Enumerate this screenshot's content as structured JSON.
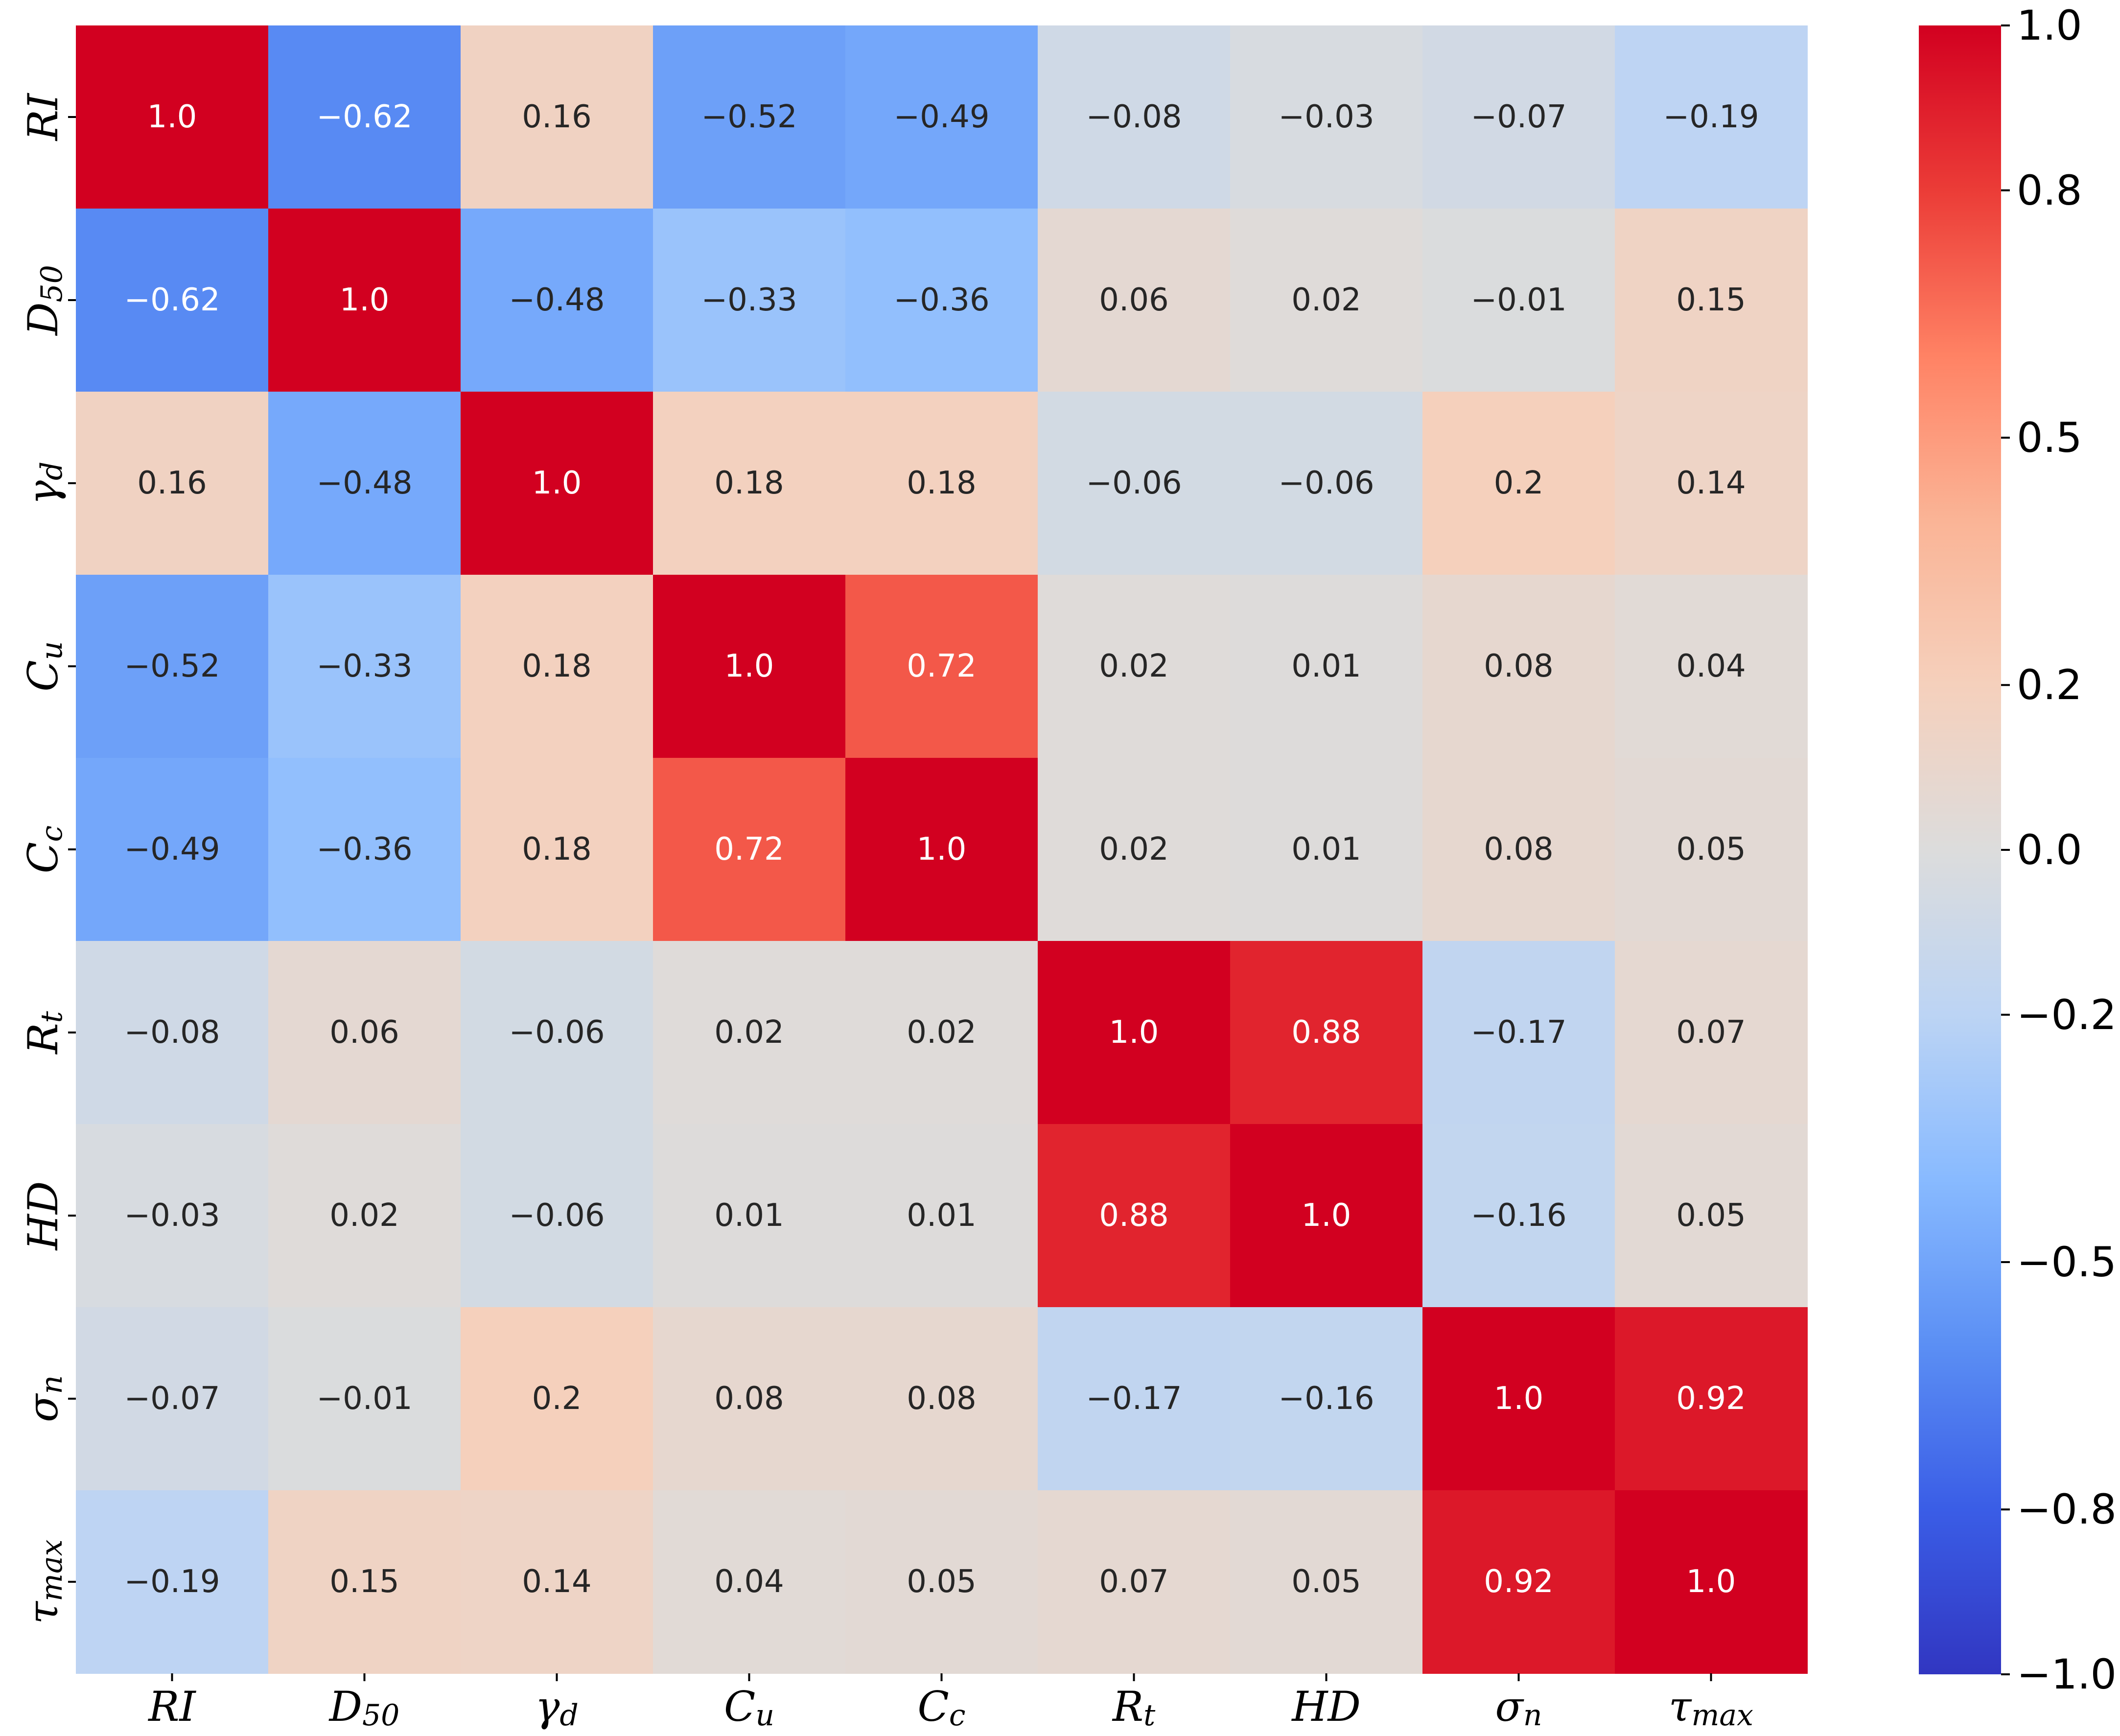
{
  "chart_data": {
    "type": "heatmap",
    "title": "",
    "xlabel": "",
    "ylabel": "",
    "labels": [
      {
        "base": "RI",
        "sub": ""
      },
      {
        "base": "D",
        "sub": "50"
      },
      {
        "base": "γ",
        "sub": "d"
      },
      {
        "base": "C",
        "sub": "u"
      },
      {
        "base": "C",
        "sub": "c"
      },
      {
        "base": "R",
        "sub": "t"
      },
      {
        "base": "HD",
        "sub": ""
      },
      {
        "base": "σ",
        "sub": "n"
      },
      {
        "base": "τ",
        "sub": "max"
      }
    ],
    "values": [
      [
        1.0,
        -0.62,
        0.16,
        -0.52,
        -0.49,
        -0.08,
        -0.03,
        -0.07,
        -0.19
      ],
      [
        -0.62,
        1.0,
        -0.48,
        -0.33,
        -0.36,
        0.06,
        0.02,
        -0.01,
        0.15
      ],
      [
        0.16,
        -0.48,
        1.0,
        0.18,
        0.18,
        -0.06,
        -0.06,
        0.2,
        0.14
      ],
      [
        -0.52,
        -0.33,
        0.18,
        1.0,
        0.72,
        0.02,
        0.01,
        0.08,
        0.04
      ],
      [
        -0.49,
        -0.36,
        0.18,
        0.72,
        1.0,
        0.02,
        0.01,
        0.08,
        0.05
      ],
      [
        -0.08,
        0.06,
        -0.06,
        0.02,
        0.02,
        1.0,
        0.88,
        -0.17,
        0.07
      ],
      [
        -0.03,
        0.02,
        -0.06,
        0.01,
        0.01,
        0.88,
        1.0,
        -0.16,
        0.05
      ],
      [
        -0.07,
        -0.01,
        0.2,
        0.08,
        0.08,
        -0.17,
        -0.16,
        1.0,
        0.92
      ],
      [
        -0.19,
        0.15,
        0.14,
        0.04,
        0.05,
        0.07,
        0.05,
        0.92,
        1.0
      ]
    ],
    "display_values": [
      [
        "1.0",
        "−0.62",
        "0.16",
        "−0.52",
        "−0.49",
        "−0.08",
        "−0.03",
        "−0.07",
        "−0.19"
      ],
      [
        "−0.62",
        "1.0",
        "−0.48",
        "−0.33",
        "−0.36",
        "0.06",
        "0.02",
        "−0.01",
        "0.15"
      ],
      [
        "0.16",
        "−0.48",
        "1.0",
        "0.18",
        "0.18",
        "−0.06",
        "−0.06",
        "0.2",
        "0.14"
      ],
      [
        "−0.52",
        "−0.33",
        "0.18",
        "1.0",
        "0.72",
        "0.02",
        "0.01",
        "0.08",
        "0.04"
      ],
      [
        "−0.49",
        "−0.36",
        "0.18",
        "0.72",
        "1.0",
        "0.02",
        "0.01",
        "0.08",
        "0.05"
      ],
      [
        "−0.08",
        "0.06",
        "−0.06",
        "0.02",
        "0.02",
        "1.0",
        "0.88",
        "−0.17",
        "0.07"
      ],
      [
        "−0.03",
        "0.02",
        "−0.06",
        "0.01",
        "0.01",
        "0.88",
        "1.0",
        "−0.16",
        "0.05"
      ],
      [
        "−0.07",
        "−0.01",
        "0.2",
        "0.08",
        "0.08",
        "−0.17",
        "−0.16",
        "1.0",
        "0.92"
      ],
      [
        "−0.19",
        "0.15",
        "0.14",
        "0.04",
        "0.05",
        "0.07",
        "0.05",
        "0.92",
        "1.0"
      ]
    ],
    "colormap": "coolwarm",
    "vmin": -1.0,
    "vmax": 1.0,
    "colorbar": {
      "ticks": [
        1.0,
        0.8,
        0.5,
        0.2,
        0.0,
        -0.2,
        -0.5,
        -0.8,
        -1.0
      ],
      "tick_labels": [
        "1.0",
        "0.8",
        "0.5",
        "0.2",
        "0.0",
        "−0.2",
        "−0.5",
        "−0.8",
        "−1.0"
      ]
    },
    "annotated": true
  }
}
